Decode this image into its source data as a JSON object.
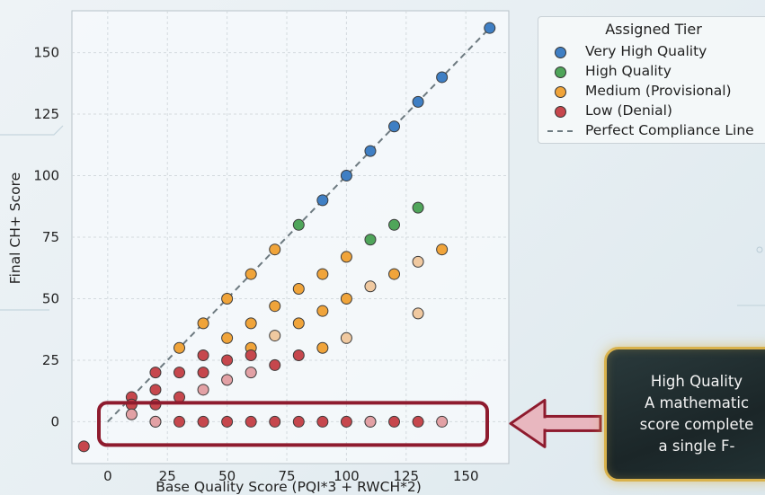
{
  "chart_data": {
    "type": "scatter",
    "title": "",
    "xlabel": "Base Quality Score (PQI*3 + RWCH*2)",
    "ylabel": "Final CH+ Score",
    "xlim": [
      -15,
      168
    ],
    "ylim": [
      -17,
      167
    ],
    "x_ticks": [
      0,
      25,
      50,
      75,
      100,
      125,
      150
    ],
    "y_ticks": [
      0,
      25,
      50,
      75,
      100,
      125,
      150
    ],
    "grid": true,
    "legend_title": "Assigned Tier",
    "legend_position": "top-right, outside plot",
    "series": [
      {
        "name": "Very High Quality",
        "color": "#3f7fc4",
        "points": [
          [
            90,
            90
          ],
          [
            100,
            100
          ],
          [
            110,
            110
          ],
          [
            120,
            120
          ],
          [
            130,
            130
          ],
          [
            140,
            140
          ],
          [
            160,
            160
          ]
        ]
      },
      {
        "name": "High Quality",
        "color": "#4fa55a",
        "points": [
          [
            80,
            80
          ],
          [
            110,
            74
          ],
          [
            120,
            80
          ],
          [
            130,
            87
          ]
        ]
      },
      {
        "name": "Medium (Provisional)",
        "color": "#f0a43a",
        "points": [
          [
            30,
            30
          ],
          [
            40,
            40
          ],
          [
            50,
            50
          ],
          [
            50,
            34
          ],
          [
            60,
            60
          ],
          [
            60,
            40
          ],
          [
            60,
            30
          ],
          [
            70,
            70
          ],
          [
            70,
            47
          ],
          [
            80,
            54
          ],
          [
            80,
            40
          ],
          [
            90,
            60
          ],
          [
            90,
            45
          ],
          [
            90,
            30
          ],
          [
            100,
            67
          ],
          [
            100,
            50
          ],
          [
            120,
            60
          ],
          [
            140,
            70
          ]
        ]
      },
      {
        "name": "Medium (Provisional)",
        "color": "#f0c9a0",
        "legend": false,
        "points": [
          [
            70,
            35
          ],
          [
            100,
            34
          ],
          [
            110,
            55
          ],
          [
            130,
            65
          ],
          [
            130,
            44
          ]
        ]
      },
      {
        "name": "Low (Denial)",
        "color": "#c6474d",
        "points": [
          [
            -10,
            -10
          ],
          [
            10,
            10
          ],
          [
            10,
            7
          ],
          [
            20,
            20
          ],
          [
            20,
            13
          ],
          [
            20,
            7
          ],
          [
            30,
            20
          ],
          [
            30,
            10
          ],
          [
            40,
            27
          ],
          [
            40,
            20
          ],
          [
            50,
            25
          ],
          [
            60,
            27
          ],
          [
            70,
            23
          ],
          [
            80,
            27
          ],
          [
            20,
            0
          ],
          [
            30,
            0
          ],
          [
            40,
            0
          ],
          [
            50,
            0
          ],
          [
            60,
            0
          ],
          [
            70,
            0
          ],
          [
            80,
            0
          ],
          [
            90,
            0
          ],
          [
            100,
            0
          ],
          [
            110,
            0
          ],
          [
            120,
            0
          ],
          [
            130,
            0
          ]
        ]
      },
      {
        "name": "Low (Denial)",
        "color": "#e2a1a5",
        "legend": false,
        "points": [
          [
            10,
            3
          ],
          [
            20,
            0
          ],
          [
            40,
            13
          ],
          [
            50,
            17
          ],
          [
            60,
            20
          ],
          [
            110,
            0
          ],
          [
            140,
            0
          ]
        ]
      }
    ],
    "reference_line": {
      "name": "Perfect Compliance Line",
      "color": "#6d7a80",
      "from": [
        0,
        0
      ],
      "to": [
        160,
        160
      ]
    },
    "annotation": {
      "lines": [
        "High Quality",
        "A mathematic",
        "score complete",
        "a single F-"
      ],
      "highlight_y": 0,
      "box_color": "#8e1b2e",
      "arrow_color": "#8e1b2e"
    }
  },
  "legend": {
    "title": "Assigned Tier",
    "items": [
      {
        "label": "Very High Quality",
        "kind": "marker",
        "color": "#3f7fc4"
      },
      {
        "label": "High Quality",
        "kind": "marker",
        "color": "#4fa55a"
      },
      {
        "label": "Medium (Provisional)",
        "kind": "marker",
        "color": "#f0a43a"
      },
      {
        "label": "Low (Denial)",
        "kind": "marker",
        "color": "#c6474d"
      },
      {
        "label": "Perfect Compliance Line",
        "kind": "line",
        "color": "#6d7a80"
      }
    ]
  }
}
